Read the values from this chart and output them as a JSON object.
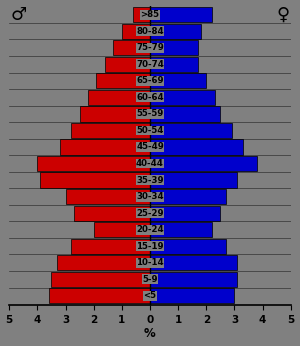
{
  "age_groups": [
    "<5",
    "5-9",
    "10-14",
    "15-19",
    "20-24",
    "25-29",
    "30-34",
    "35-39",
    "40-44",
    "45-49",
    "50-54",
    "55-59",
    "60-64",
    "65-69",
    "70-74",
    "75-79",
    "80-84",
    ">85"
  ],
  "male": [
    3.6,
    3.5,
    3.3,
    2.8,
    2.0,
    2.7,
    3.0,
    3.9,
    4.0,
    3.2,
    2.8,
    2.5,
    2.2,
    1.9,
    1.6,
    1.3,
    1.0,
    0.6
  ],
  "female": [
    3.0,
    3.1,
    3.1,
    2.7,
    2.2,
    2.5,
    2.7,
    3.1,
    3.8,
    3.3,
    2.9,
    2.5,
    2.3,
    2.0,
    1.7,
    1.7,
    1.8,
    2.2
  ],
  "male_color": "#cc0000",
  "female_color": "#0000cc",
  "bg_color": "#808080",
  "bar_edge_color": "#000000",
  "xlim": 5.0,
  "xlabel": "%",
  "male_symbol": "♂",
  "female_symbol": "♀",
  "x_ticks": [
    -5,
    -4,
    -3,
    -2,
    -1,
    0,
    1,
    2,
    3,
    4,
    5
  ],
  "x_tick_labels": [
    "5",
    "4",
    "3",
    "2",
    "1",
    "0",
    "1",
    "2",
    "3",
    "4",
    "5"
  ]
}
